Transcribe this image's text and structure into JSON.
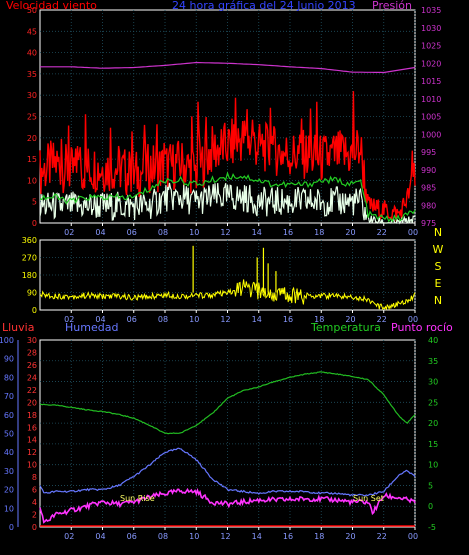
{
  "colors": {
    "background": "#000000",
    "grid": "#1f4f5f",
    "wind_speed": "#ff0000",
    "wind_gust": "#22cc22",
    "wind_avg": "#e8ffe8",
    "pressure": "#cc33cc",
    "wind_dir": "#ffff00",
    "rain": "#ff0000",
    "humidity": "#6677ff",
    "temperature": "#22bb22",
    "dewpoint": "#ff33ff",
    "sun_label": "#ffff66"
  },
  "chart_data": [
    {
      "type": "line",
      "title": "24 hora gráfica del  24 Junio 2013",
      "left_axis_title": "Velocidad viento",
      "right_axis_title": "Presión",
      "x_ticks": [
        "02",
        "04",
        "06",
        "08",
        "10",
        "12",
        "14",
        "16",
        "18",
        "20",
        "22",
        "00"
      ],
      "left_ticks": [
        "0",
        "5",
        "10",
        "15",
        "20",
        "25",
        "30",
        "35",
        "40",
        "45",
        "50"
      ],
      "right_ticks": [
        "975",
        "980",
        "985",
        "990",
        "995",
        "1000",
        "1005",
        "1010",
        "1015",
        "1020",
        "1025",
        "1030",
        "1035"
      ],
      "left_range": [
        0,
        50
      ],
      "right_range": [
        975,
        1035
      ],
      "x_hours": [
        0,
        24
      ],
      "series": [
        {
          "key": "gust",
          "axis": "left",
          "x": [
            0,
            1,
            2,
            3,
            4,
            5,
            6,
            7,
            8,
            9,
            10,
            11,
            12,
            13,
            14,
            15,
            16,
            17,
            18,
            19,
            20,
            20.5,
            21,
            22,
            23,
            24
          ],
          "values": [
            12,
            14,
            12,
            13,
            13,
            13,
            11,
            13,
            13,
            14,
            12,
            17,
            18,
            20,
            18,
            17,
            16,
            16,
            15,
            16,
            16,
            18,
            4,
            3,
            2,
            10
          ]
        },
        {
          "key": "gust_avg",
          "axis": "left",
          "x": [
            0,
            1,
            2,
            3,
            4,
            5,
            6,
            7,
            8,
            9,
            10,
            11,
            12,
            13,
            14,
            15,
            16,
            17,
            18,
            19,
            20,
            20.5,
            21,
            22,
            23,
            24
          ],
          "values": [
            6,
            6,
            5,
            6,
            6,
            6,
            6,
            8,
            10,
            10,
            9,
            10,
            11,
            11,
            10,
            9,
            9,
            9,
            10,
            10,
            9,
            10,
            2,
            1,
            1,
            3
          ]
        },
        {
          "key": "wind_avg",
          "axis": "left",
          "x": [
            0,
            1,
            2,
            3,
            4,
            5,
            6,
            7,
            8,
            9,
            10,
            11,
            12,
            13,
            14,
            15,
            16,
            17,
            18,
            19,
            20,
            20.5,
            21,
            22,
            23,
            24
          ],
          "values": [
            4,
            4,
            4,
            4,
            4,
            4,
            4,
            4,
            6,
            6,
            5,
            6,
            6,
            6,
            5,
            5,
            5,
            5,
            5,
            5,
            5,
            5,
            1,
            0,
            0,
            1
          ]
        },
        {
          "name": "Presión",
          "key": "pressure",
          "axis": "right",
          "x": [
            0,
            2,
            4,
            6,
            8,
            10,
            12,
            14,
            16,
            18,
            20,
            22,
            24
          ],
          "values": [
            1019,
            1019,
            1018.6,
            1018.8,
            1019.4,
            1020.2,
            1020.0,
            1019.6,
            1019.0,
            1018.5,
            1017.5,
            1017.4,
            1018.8
          ]
        }
      ]
    },
    {
      "type": "line",
      "left_ticks": [
        "0",
        "90",
        "180",
        "270",
        "360"
      ],
      "direction_labels": [
        "N",
        "W",
        "S",
        "E",
        "N"
      ],
      "range": [
        0,
        360
      ],
      "x_ticks": [
        "02",
        "04",
        "06",
        "08",
        "10",
        "12",
        "14",
        "16",
        "18",
        "20",
        "22",
        "00"
      ],
      "series": [
        {
          "key": "wind_dir",
          "x": [
            0,
            1,
            2,
            3,
            4,
            5,
            6,
            7,
            8,
            9,
            10,
            11,
            12,
            13,
            14,
            15,
            16,
            17,
            18,
            19,
            20,
            21,
            21.5,
            22,
            23,
            24
          ],
          "values": [
            80,
            72,
            68,
            75,
            70,
            72,
            62,
            70,
            78,
            72,
            74,
            78,
            85,
            115,
            95,
            80,
            80,
            72,
            75,
            72,
            68,
            55,
            20,
            15,
            30,
            75
          ],
          "spikes": [
            {
              "x": 9.8,
              "value": 330
            },
            {
              "x": 13.9,
              "value": 270
            },
            {
              "x": 14.3,
              "value": 320
            },
            {
              "x": 14.6,
              "value": 240
            },
            {
              "x": 15.1,
              "value": 200
            }
          ]
        }
      ]
    },
    {
      "type": "line",
      "titles": [
        "Lluvia",
        "Humedad",
        "Temperatura",
        "Punto rocío"
      ],
      "humidity_ticks": [
        "0",
        "10",
        "20",
        "30",
        "40",
        "50",
        "60",
        "70",
        "80",
        "90",
        "100"
      ],
      "rain_ticks": [
        "0",
        "2",
        "4",
        "6",
        "8",
        "10",
        "12",
        "14",
        "16",
        "18",
        "20",
        "22",
        "24",
        "26",
        "28",
        "30"
      ],
      "temp_ticks": [
        "-5",
        "0",
        "5",
        "10",
        "15",
        "20",
        "25",
        "30",
        "35",
        "40"
      ],
      "x_ticks": [
        "02",
        "04",
        "06",
        "08",
        "10",
        "12",
        "14",
        "16",
        "18",
        "20",
        "22",
        "00"
      ],
      "temp_range": [
        -5,
        40
      ],
      "humidity_range": [
        0,
        100
      ],
      "annotations": [
        "Sun Rise",
        "Sun Set"
      ],
      "series": [
        {
          "name": "Temperatura",
          "key": "temperature",
          "x": [
            0,
            1,
            2,
            3,
            4,
            5,
            6,
            7,
            8,
            9,
            10,
            11,
            12,
            13,
            14,
            15,
            16,
            17,
            18,
            19,
            20,
            21,
            22,
            23,
            23.5,
            24
          ],
          "values": [
            24.5,
            24.3,
            23.8,
            23.2,
            22.8,
            22.1,
            21.2,
            19.5,
            17.5,
            17.6,
            19.5,
            22.2,
            26.0,
            27.8,
            28.7,
            30.0,
            31.0,
            31.8,
            32.3,
            31.8,
            31.2,
            30.5,
            26.8,
            21.6,
            20.0,
            22.0
          ]
        },
        {
          "name": "Humedad",
          "key": "humidity",
          "x": [
            0,
            0.3,
            1,
            2,
            3,
            4,
            5,
            6,
            7,
            8,
            9,
            10,
            11,
            12,
            13,
            14,
            15,
            16,
            17,
            18,
            19,
            20,
            21,
            22,
            23,
            23.5,
            24
          ],
          "values": [
            22,
            18,
            19,
            19,
            20,
            20,
            22,
            27,
            33,
            40,
            42,
            36,
            26,
            20,
            19,
            18,
            19,
            19,
            19,
            18,
            18,
            17,
            17,
            19,
            28,
            30,
            27
          ]
        },
        {
          "name": "Punto rocío",
          "key": "dewpoint",
          "x": [
            0,
            0.3,
            1,
            2,
            3,
            4,
            5,
            6,
            7,
            8,
            9,
            10,
            11,
            12,
            13,
            14,
            15,
            16,
            17,
            18,
            19,
            20,
            21,
            21.3,
            22,
            23,
            24
          ],
          "values": [
            -0.5,
            -4,
            -2,
            -1,
            0,
            1,
            0.5,
            1,
            2.2,
            3,
            3.7,
            3.5,
            1,
            0.5,
            1,
            1.5,
            1.5,
            1.6,
            1.8,
            1.7,
            1.5,
            1,
            1,
            -1.5,
            2.5,
            2.0,
            1.0
          ]
        },
        {
          "name": "Lluvia",
          "key": "rain",
          "x": [
            0,
            24
          ],
          "values": [
            0,
            0
          ]
        }
      ]
    }
  ]
}
